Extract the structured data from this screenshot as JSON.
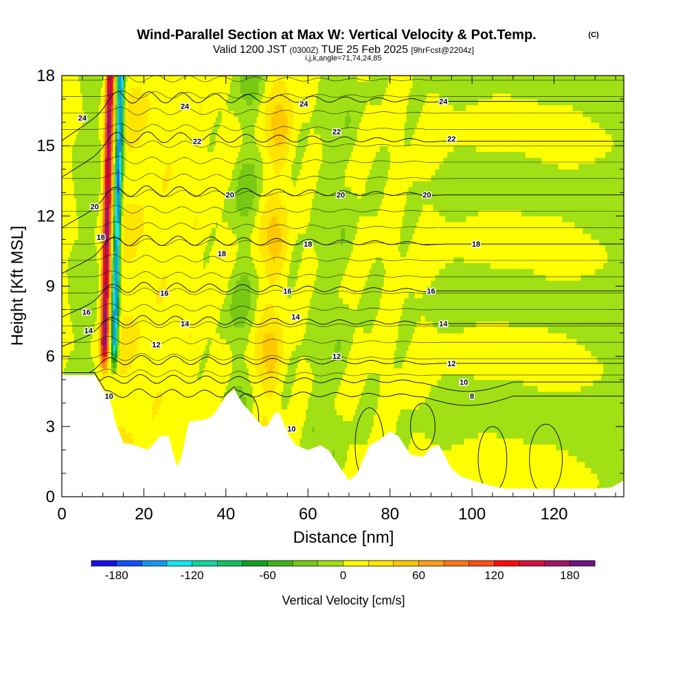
{
  "chart_data": {
    "type": "heatmap",
    "title": "Wind-Parallel Section at Max W: Vertical Velocity & Pot.Temp.",
    "title_mark": "(C)",
    "subtitle": {
      "prefix": "Valid 1200 JST",
      "utc": "(0300Z)",
      "date": "TUE 25 Feb 2025",
      "forecast": "[9hrFcst@2204z]"
    },
    "subtitle2": "i,j,k,angle=71,74,24,85",
    "xlabel": "Distance [nm]",
    "ylabel": "Height [Kft MSL]",
    "xlim": [
      0,
      137
    ],
    "ylim": [
      0,
      18
    ],
    "x_ticks": [
      0,
      20,
      40,
      60,
      80,
      100,
      120
    ],
    "y_ticks": [
      0,
      3,
      6,
      9,
      12,
      15,
      18
    ],
    "colorbar": {
      "label": "Vertical Velocity [cm/s]",
      "min": -200,
      "max": 200,
      "step": 20,
      "ticks": [
        -180,
        -120,
        -60,
        0,
        60,
        120,
        180
      ],
      "colors": [
        "#1a10e8",
        "#1450ff",
        "#1496f0",
        "#14e6f0",
        "#10d7a0",
        "#10c060",
        "#10a020",
        "#3cb418",
        "#78c814",
        "#a0e014",
        "#ffff00",
        "#ffe600",
        "#ffc800",
        "#ffa014",
        "#ff7814",
        "#ff5014",
        "#ff0a0a",
        "#d2143c",
        "#a01464",
        "#6e1482"
      ]
    },
    "terrain": [
      [
        0,
        5.2
      ],
      [
        8,
        5.2
      ],
      [
        10,
        4.6
      ],
      [
        12,
        4.0
      ],
      [
        13,
        3.2
      ],
      [
        15,
        2.3
      ],
      [
        18,
        2.2
      ],
      [
        21,
        2.0
      ],
      [
        24,
        2.6
      ],
      [
        26,
        2.6
      ],
      [
        28,
        1.3
      ],
      [
        29,
        1.6
      ],
      [
        31,
        3.2
      ],
      [
        35,
        3.3
      ],
      [
        37,
        3.5
      ],
      [
        40,
        4.3
      ],
      [
        42,
        4.6
      ],
      [
        44,
        4.0
      ],
      [
        46,
        3.6
      ],
      [
        49,
        3.0
      ],
      [
        50,
        3.0
      ],
      [
        52,
        3.6
      ],
      [
        53,
        3.6
      ],
      [
        55,
        2.7
      ],
      [
        57,
        2.2
      ],
      [
        60,
        2.0
      ],
      [
        63,
        2.2
      ],
      [
        65,
        2.0
      ],
      [
        68,
        1.2
      ],
      [
        70,
        0.7
      ],
      [
        72,
        1.0
      ],
      [
        75,
        2.2
      ],
      [
        78,
        2.5
      ],
      [
        80,
        2.8
      ],
      [
        82,
        2.6
      ],
      [
        85,
        1.8
      ],
      [
        88,
        1.7
      ],
      [
        90,
        2.1
      ],
      [
        92,
        2.2
      ],
      [
        95,
        1.2
      ],
      [
        97,
        0.9
      ],
      [
        100,
        0.7
      ],
      [
        104,
        0.5
      ],
      [
        108,
        0.35
      ],
      [
        112,
        0.35
      ],
      [
        116,
        0.35
      ],
      [
        120,
        0.35
      ],
      [
        125,
        0.35
      ],
      [
        130,
        0.35
      ],
      [
        134,
        0.4
      ],
      [
        137,
        0.7
      ]
    ],
    "theta_contours": [
      {
        "level": 8,
        "base": 4.3,
        "lbl_x": 100
      },
      {
        "level": 10,
        "base": 4.9,
        "lbl_x": 98
      },
      {
        "level": 12,
        "base": 5.7,
        "lbl_x": 95
      },
      {
        "level": 14,
        "base": 7.4,
        "lbl_x": 93
      },
      {
        "level": 16,
        "base": 8.8,
        "lbl_x": 90
      },
      {
        "level": 18,
        "base": 10.8,
        "lbl_x": 101
      },
      {
        "level": 20,
        "base": 12.9,
        "lbl_x": 89
      },
      {
        "level": 22,
        "base": 15.2,
        "lbl_x": 95
      },
      {
        "level": 24,
        "base": 16.9,
        "lbl_x": 93
      }
    ],
    "theta_labels": [
      {
        "text": "24",
        "x": 5,
        "y": 16.2
      },
      {
        "text": "24",
        "x": 30,
        "y": 16.7
      },
      {
        "text": "24",
        "x": 59,
        "y": 16.8
      },
      {
        "text": "24",
        "x": 93,
        "y": 16.9
      },
      {
        "text": "22",
        "x": 33,
        "y": 15.2
      },
      {
        "text": "22",
        "x": 67,
        "y": 15.6
      },
      {
        "text": "22",
        "x": 95,
        "y": 15.3
      },
      {
        "text": "20",
        "x": 8,
        "y": 12.4
      },
      {
        "text": "20",
        "x": 41,
        "y": 12.9
      },
      {
        "text": "20",
        "x": 68,
        "y": 12.9
      },
      {
        "text": "20",
        "x": 89,
        "y": 12.9
      },
      {
        "text": "18",
        "x": 9.5,
        "y": 11.1
      },
      {
        "text": "18",
        "x": 39,
        "y": 10.4
      },
      {
        "text": "18",
        "x": 60,
        "y": 10.8
      },
      {
        "text": "18",
        "x": 101,
        "y": 10.8
      },
      {
        "text": "16",
        "x": 6,
        "y": 7.9
      },
      {
        "text": "16",
        "x": 25,
        "y": 8.7
      },
      {
        "text": "16",
        "x": 55,
        "y": 8.8
      },
      {
        "text": "16",
        "x": 90,
        "y": 8.8
      },
      {
        "text": "14",
        "x": 6.5,
        "y": 7.1
      },
      {
        "text": "14",
        "x": 30,
        "y": 7.4
      },
      {
        "text": "14",
        "x": 57,
        "y": 7.7
      },
      {
        "text": "14",
        "x": 93,
        "y": 7.4
      },
      {
        "text": "12",
        "x": 23,
        "y": 6.5
      },
      {
        "text": "12",
        "x": 67,
        "y": 6.0
      },
      {
        "text": "12",
        "x": 95,
        "y": 5.7
      },
      {
        "text": "10",
        "x": 11.5,
        "y": 4.3
      },
      {
        "text": "10",
        "x": 56,
        "y": 2.9
      },
      {
        "text": "10",
        "x": 98,
        "y": 4.9
      },
      {
        "text": "8",
        "x": 100,
        "y": 4.3
      }
    ]
  }
}
